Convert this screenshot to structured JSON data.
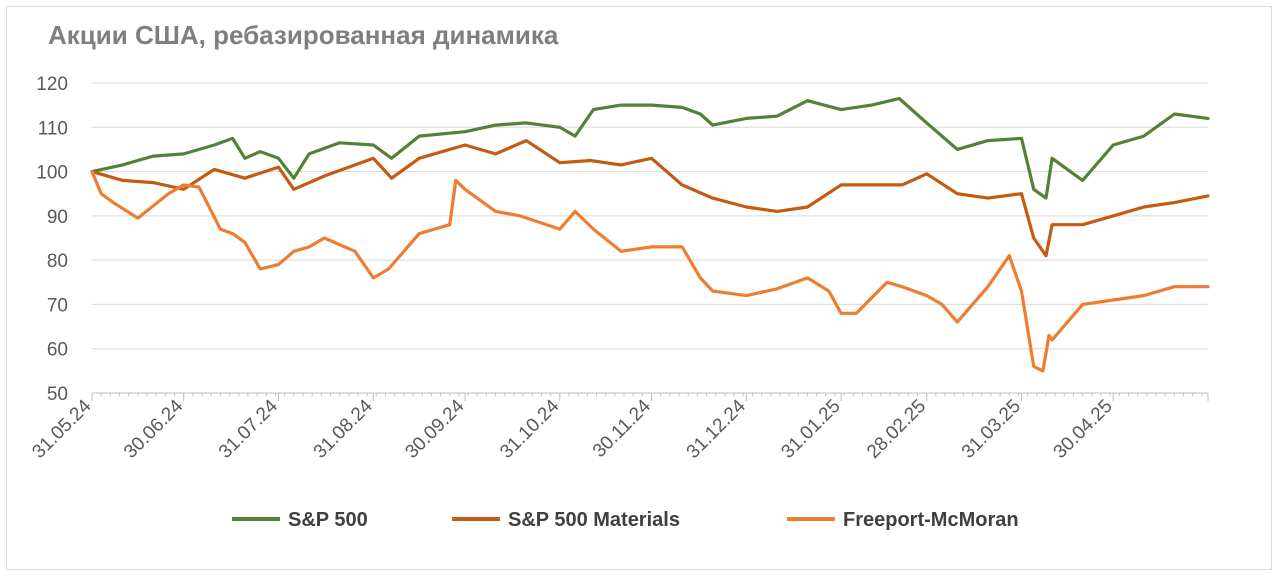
{
  "chart_data": {
    "type": "line",
    "title": "Акции США, ребазированная динамика",
    "xlabel": "",
    "ylabel": "",
    "ylim": [
      50,
      120
    ],
    "yticks": [
      50,
      60,
      70,
      80,
      90,
      100,
      110,
      120
    ],
    "xlim": [
      "31.05.24",
      "31.05.25"
    ],
    "xticks": [
      "31.05.24",
      "30.06.24",
      "31.07.24",
      "31.08.24",
      "30.09.24",
      "31.10.24",
      "30.11.24",
      "31.12.24",
      "31.01.25",
      "28.02.25",
      "31.03.25",
      "30.04.25"
    ],
    "grid": "horizontal",
    "legend": "bottom",
    "series": [
      {
        "name": "S&P 500",
        "color": "#548235",
        "x": [
          "31.05.24",
          "10.06.24",
          "20.06.24",
          "30.06.24",
          "10.07.24",
          "16.07.24",
          "20.07.24",
          "25.07.24",
          "31.07.24",
          "05.08.24",
          "10.08.24",
          "20.08.24",
          "31.08.24",
          "06.09.24",
          "15.09.24",
          "30.09.24",
          "10.10.24",
          "20.10.24",
          "31.10.24",
          "05.11.24",
          "11.11.24",
          "20.11.24",
          "30.11.24",
          "10.12.24",
          "16.12.24",
          "20.12.24",
          "31.12.24",
          "10.01.25",
          "20.01.25",
          "31.01.25",
          "10.02.25",
          "19.02.25",
          "28.02.25",
          "10.03.25",
          "20.03.25",
          "31.03.25",
          "04.04.25",
          "08.04.25",
          "10.04.25",
          "20.04.25",
          "30.04.25",
          "10.05.25",
          "20.05.25",
          "31.05.25"
        ],
        "y": [
          100,
          101.5,
          103.5,
          104,
          106,
          107.5,
          103,
          104.5,
          103,
          98.5,
          104,
          106.5,
          106,
          103,
          108,
          109,
          110.5,
          111,
          110,
          108,
          114,
          115,
          115,
          114.5,
          113,
          110.5,
          112,
          112.5,
          116,
          114,
          115,
          116.5,
          111,
          105,
          107,
          107.5,
          96,
          94,
          103,
          98,
          106,
          108,
          113,
          112
        ]
      },
      {
        "name": "S&P 500 Materials",
        "color": "#c55a11",
        "x": [
          "31.05.24",
          "10.06.24",
          "20.06.24",
          "30.06.24",
          "10.07.24",
          "20.07.24",
          "31.07.24",
          "05.08.24",
          "15.08.24",
          "31.08.24",
          "06.09.24",
          "15.09.24",
          "30.09.24",
          "10.10.24",
          "20.10.24",
          "31.10.24",
          "10.11.24",
          "20.11.24",
          "30.11.24",
          "10.12.24",
          "20.12.24",
          "31.12.24",
          "10.01.25",
          "20.01.25",
          "31.01.25",
          "10.02.25",
          "20.02.25",
          "28.02.25",
          "10.03.25",
          "20.03.25",
          "31.03.25",
          "04.04.25",
          "08.04.25",
          "10.04.25",
          "20.04.25",
          "30.04.25",
          "10.05.25",
          "20.05.25",
          "31.05.25"
        ],
        "y": [
          100,
          98,
          97.5,
          96,
          100.5,
          98.5,
          101,
          96,
          99,
          103,
          98.5,
          103,
          106,
          104,
          107,
          102,
          102.5,
          101.5,
          103,
          97,
          94,
          92,
          91,
          92,
          97,
          97,
          97,
          99.5,
          95,
          94,
          95,
          85,
          81,
          88,
          88,
          90,
          92,
          93,
          94.5
        ]
      },
      {
        "name": "Freeport-McMoran",
        "color": "#ed7d31",
        "x": [
          "31.05.24",
          "03.06.24",
          "07.06.24",
          "15.06.24",
          "25.06.24",
          "30.06.24",
          "05.07.24",
          "12.07.24",
          "16.07.24",
          "20.07.24",
          "25.07.24",
          "31.07.24",
          "05.08.24",
          "10.08.24",
          "15.08.24",
          "25.08.24",
          "31.08.24",
          "05.09.24",
          "15.09.24",
          "25.09.24",
          "27.09.24",
          "30.09.24",
          "10.10.24",
          "18.10.24",
          "31.10.24",
          "05.11.24",
          "11.11.24",
          "20.11.24",
          "30.11.24",
          "10.12.24",
          "16.12.24",
          "20.12.24",
          "31.12.24",
          "10.01.25",
          "20.01.25",
          "27.01.25",
          "31.01.25",
          "05.02.25",
          "15.02.25",
          "20.02.25",
          "28.02.25",
          "05.03.25",
          "10.03.25",
          "20.03.25",
          "27.03.25",
          "31.03.25",
          "04.04.25",
          "07.04.25",
          "09.04.25",
          "10.04.25",
          "20.04.25",
          "30.04.25",
          "10.05.25",
          "20.05.25",
          "31.05.25"
        ],
        "y": [
          100,
          95,
          93,
          89.5,
          95,
          97,
          96.5,
          87,
          86,
          84,
          78,
          79,
          82,
          83,
          85,
          82,
          76,
          78,
          86,
          88,
          98,
          96,
          91,
          90,
          87,
          91,
          87,
          82,
          83,
          83,
          76,
          73,
          72,
          73.5,
          76,
          73,
          68,
          68,
          75,
          74,
          72,
          70,
          66,
          74,
          81,
          73,
          56,
          55,
          63,
          62,
          70,
          71,
          72,
          74,
          74
        ]
      }
    ]
  }
}
